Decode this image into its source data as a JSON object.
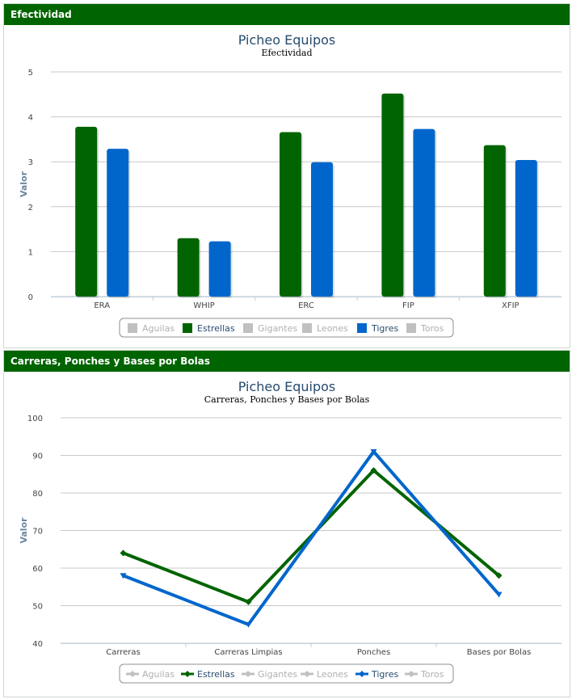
{
  "panels": [
    {
      "title": "Efectividad"
    },
    {
      "title": "Carreras, Ponches y Bases por Bolas"
    }
  ],
  "legend_items": [
    {
      "name": "Aguilas",
      "active": false
    },
    {
      "name": "Estrellas",
      "active": true,
      "color": "#006400"
    },
    {
      "name": "Gigantes",
      "active": false
    },
    {
      "name": "Leones",
      "active": false
    },
    {
      "name": "Tigres",
      "active": true,
      "color": "#0066cc"
    },
    {
      "name": "Toros",
      "active": false
    }
  ],
  "colors": {
    "header": "#006400",
    "estrellas": "#006400",
    "tigres": "#0066cc",
    "inactive": "#c0c0c0"
  },
  "chart_data": [
    {
      "type": "bar",
      "title": "Picheo Equipos",
      "subtitle": "Efectividad",
      "ylabel": "Valor",
      "xlabel": "",
      "ylim": [
        0,
        5
      ],
      "yticks": [
        0,
        1,
        2,
        3,
        4,
        5
      ],
      "grid": true,
      "legend": "bottom",
      "categories": [
        "ERA",
        "WHIP",
        "ERC",
        "FIP",
        "XFIP"
      ],
      "series": [
        {
          "name": "Estrellas",
          "color": "#006400",
          "values": [
            3.78,
            1.3,
            3.66,
            4.52,
            3.37
          ]
        },
        {
          "name": "Tigres",
          "color": "#0066cc",
          "values": [
            3.29,
            1.23,
            2.99,
            3.73,
            3.04
          ]
        }
      ]
    },
    {
      "type": "line",
      "title": "Picheo Equipos",
      "subtitle": "Carreras, Ponches y Bases por Bolas",
      "ylabel": "Valor",
      "xlabel": "",
      "ylim": [
        40,
        100
      ],
      "yticks": [
        40,
        50,
        60,
        70,
        80,
        90,
        100
      ],
      "grid": true,
      "legend": "bottom",
      "categories": [
        "Carreras",
        "Carreras Limpias",
        "Ponches",
        "Bases por Bolas"
      ],
      "series": [
        {
          "name": "Estrellas",
          "color": "#006400",
          "marker": "diamond",
          "values": [
            64,
            51,
            86,
            58
          ]
        },
        {
          "name": "Tigres",
          "color": "#0066cc",
          "marker": "triangle-down",
          "values": [
            58,
            45,
            91,
            53
          ]
        }
      ]
    }
  ]
}
